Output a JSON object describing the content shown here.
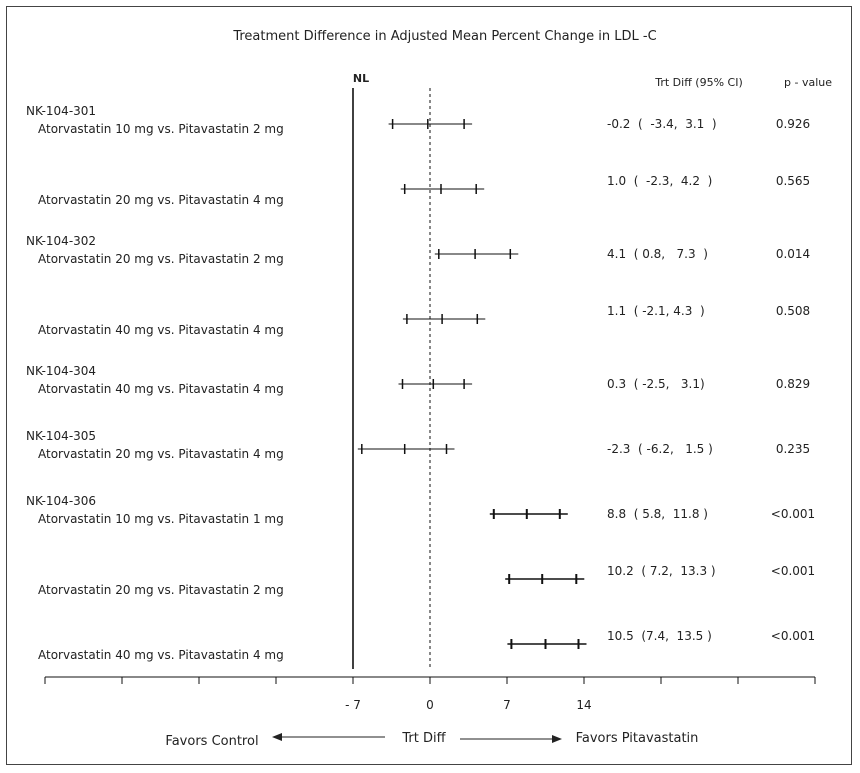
{
  "chart_data": {
    "type": "forest",
    "title": "Treatment Difference in Adjusted Mean Percent Change in LDL -C",
    "nl_label": "NL",
    "nl_value": -7,
    "col_headers": {
      "ci": "Trt Diff (95% CI)",
      "p": "p - value"
    },
    "x_axis": {
      "range": [
        -35,
        35
      ],
      "ticks": [
        -35,
        -28,
        -21,
        -14,
        -7,
        0,
        7,
        14,
        21,
        28,
        35
      ],
      "tick_labels": [
        {
          "value": -7,
          "label": "- 7"
        },
        {
          "value": 0,
          "label": "0"
        },
        {
          "value": 7,
          "label": "7"
        },
        {
          "value": 14,
          "label": "14"
        }
      ],
      "label": "Trt Diff",
      "left_note": "Favors Control",
      "right_note": "Favors Pitavastatin"
    },
    "rows": [
      {
        "study": "NK-104-301",
        "comparison": "Atorvastatin 10 mg vs. Pitavastatin 2 mg",
        "estimate": -0.2,
        "lower": -3.4,
        "upper": 3.1,
        "ci_text": "-0.2  (  -3.4,  3.1  )",
        "p": "0.926"
      },
      {
        "study": "",
        "comparison": "Atorvastatin 20 mg vs. Pitavastatin 4 mg",
        "estimate": 1.0,
        "lower": -2.3,
        "upper": 4.2,
        "ci_text": "1.0  (  -2.3,  4.2  )",
        "p": "0.565"
      },
      {
        "study": "NK-104-302",
        "comparison": "Atorvastatin 20 mg vs. Pitavastatin 2 mg",
        "estimate": 4.1,
        "lower": 0.8,
        "upper": 7.3,
        "ci_text": "4.1  ( 0.8,   7.3  )",
        "p": "0.014"
      },
      {
        "study": "",
        "comparison": "Atorvastatin 40 mg vs. Pitavastatin 4 mg",
        "estimate": 1.1,
        "lower": -2.1,
        "upper": 4.3,
        "ci_text": "1.1  ( -2.1, 4.3  )",
        "p": "0.508"
      },
      {
        "study": "NK-104-304",
        "comparison": "Atorvastatin 40 mg vs. Pitavastatin 4 mg",
        "estimate": 0.3,
        "lower": -2.5,
        "upper": 3.1,
        "ci_text": "0.3  ( -2.5,   3.1)",
        "p": "0.829"
      },
      {
        "study": "NK-104-305",
        "comparison": "Atorvastatin 20 mg vs. Pitavastatin 4 mg",
        "estimate": -2.3,
        "lower": -6.2,
        "upper": 1.5,
        "ci_text": "-2.3  ( -6.2,   1.5 )",
        "p": "0.235"
      },
      {
        "study": "NK-104-306",
        "comparison": "Atorvastatin 10 mg vs. Pitavastatin 1 mg",
        "estimate": 8.8,
        "lower": 5.8,
        "upper": 11.8,
        "ci_text": "8.8  ( 5.8,  11.8 )",
        "p": "<0.001"
      },
      {
        "study": "",
        "comparison": "Atorvastatin 20 mg vs. Pitavastatin 2 mg",
        "estimate": 10.2,
        "lower": 7.2,
        "upper": 13.3,
        "ci_text": "10.2  ( 7.2,  13.3 )",
        "p": "<0.001"
      },
      {
        "study": "",
        "comparison": "Atorvastatin 40 mg vs. Pitavastatin 4 mg",
        "estimate": 10.5,
        "lower": 7.4,
        "upper": 13.5,
        "ci_text": "10.5  (7.4,  13.5 )",
        "p": "<0.001"
      }
    ]
  }
}
